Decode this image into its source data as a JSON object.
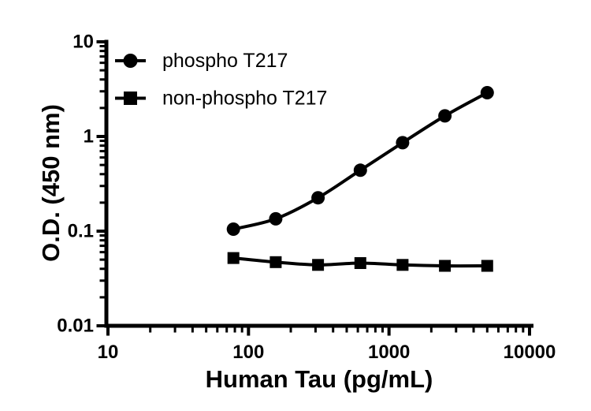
{
  "figure": {
    "kind": "ELISA standard curve plot",
    "background_color": "#ffffff",
    "plot_color": "#000000"
  },
  "chart_data": {
    "type": "line",
    "title": "",
    "xlabel": "Human Tau (pg/mL)",
    "ylabel": "O.D. (450 nm)",
    "x_scale": "log",
    "y_scale": "log",
    "xlim": [
      10,
      10000
    ],
    "ylim": [
      0.01,
      10
    ],
    "x_ticks": [
      10,
      100,
      1000,
      10000
    ],
    "y_ticks": [
      0.01,
      0.1,
      1,
      10
    ],
    "x_tick_labels": [
      "10",
      "100",
      "1000",
      "10000"
    ],
    "y_tick_labels": [
      "0.01",
      "0.1",
      "1",
      "10"
    ],
    "minor_log_ticks": true,
    "grid": false,
    "legend_position": "top-left-inside",
    "series": [
      {
        "name": "phospho T217",
        "marker": "circle",
        "color": "#000000",
        "x": [
          78.125,
          156.25,
          312.5,
          625,
          1250,
          2500,
          5000
        ],
        "y": [
          0.105,
          0.135,
          0.225,
          0.44,
          0.86,
          1.65,
          2.9
        ]
      },
      {
        "name": "non-phospho T217",
        "marker": "square",
        "color": "#000000",
        "x": [
          78.125,
          156.25,
          312.5,
          625,
          1250,
          2500,
          5000
        ],
        "y": [
          0.052,
          0.047,
          0.044,
          0.046,
          0.044,
          0.043,
          0.043
        ]
      }
    ]
  }
}
